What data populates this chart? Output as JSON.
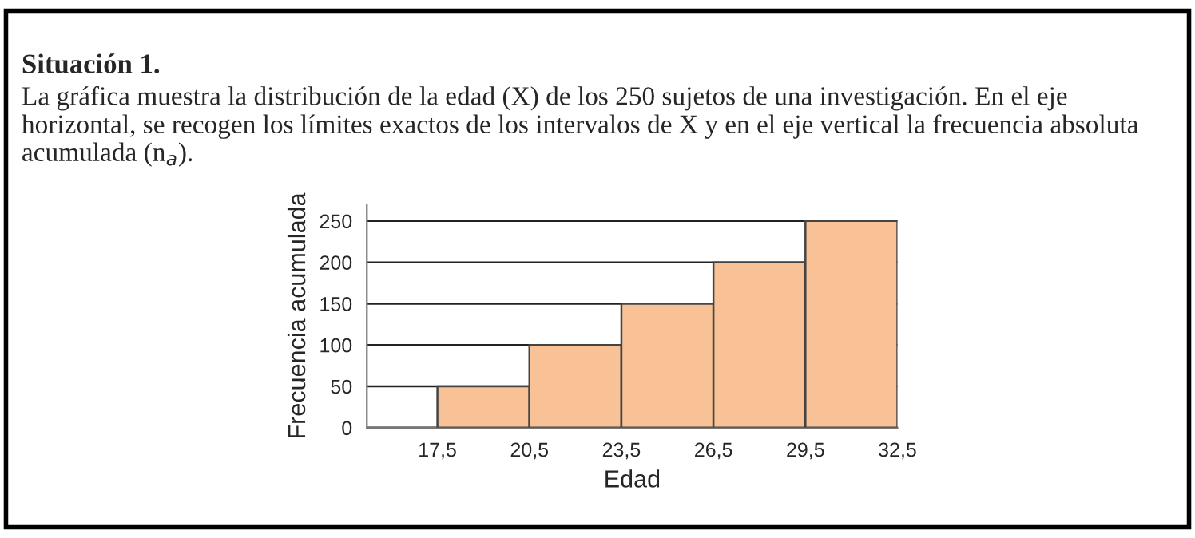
{
  "chart_data": {
    "type": "histogram",
    "title": "Situación 1.",
    "subtitle": "La gráfica muestra la distribución de la edad (X) de los 250 sujetos de una investigación. En el eje horizontal, se recogen los límites exactos de los intervalos de X y en el eje vertical la frecuencia absoluta acumulada (n$_{a}$).",
    "xlabel": "Edad",
    "ylabel": "Frecuencia acumulada",
    "bins": [
      17.5,
      20.5,
      23.5,
      26.5,
      29.5,
      32.5
    ],
    "values": [
      50,
      100,
      150,
      200,
      250
    ],
    "color": "#f8c296",
    "xlim": [
      15.2,
      32.5
    ],
    "xticks": [
      {
        "value": 17.5,
        "label": "17,5"
      },
      {
        "value": 20.5,
        "label": "20,5"
      },
      {
        "value": 23.5,
        "label": "23,5"
      },
      {
        "value": 26.5,
        "label": "26,5"
      },
      {
        "value": 29.5,
        "label": "29,5"
      },
      {
        "value": 32.5,
        "label": "32,5"
      }
    ],
    "ylim": [
      0,
      270
    ],
    "yticks": [
      0,
      50,
      100,
      150,
      200,
      250
    ],
    "grid": "y",
    "legend": false
  }
}
